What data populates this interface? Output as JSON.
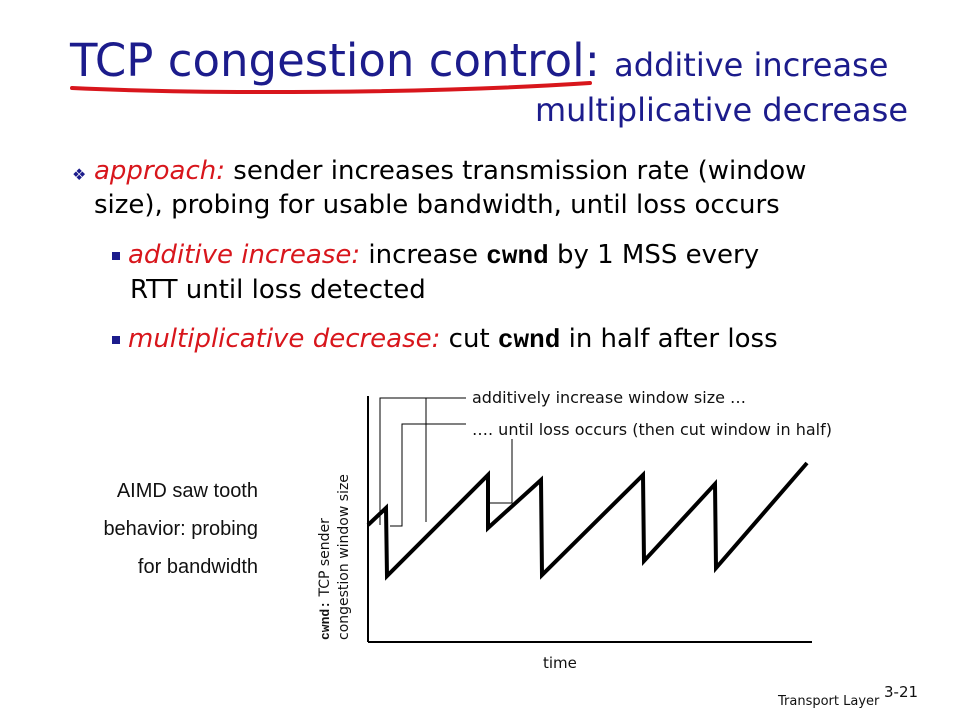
{
  "slide": {
    "title_main": "TCP congestion control:",
    "title_sub": "additive increase",
    "title_line2": "multiplicative decrease",
    "accent_color": "#d8161c",
    "title_color": "#1c1c8c"
  },
  "bullets": {
    "approach_term": "approach:",
    "approach_text_1": "sender increases transmission rate (window",
    "approach_text_2": "size), probing for usable bandwidth, until loss occurs",
    "ai_term": "additive increase:",
    "ai_text_a": "increase",
    "ai_code": "cwnd",
    "ai_text_b": "by 1 MSS every",
    "ai_text_2": "RTT until loss detected",
    "md_term": "multiplicative decrease:",
    "md_text_a": "cut",
    "md_code": "cwnd",
    "md_text_b": "in half after loss"
  },
  "side_note": {
    "line1": "AIMD saw tooth",
    "line2": "behavior: probing",
    "line3": "for bandwidth"
  },
  "diagram": {
    "anno_increase": "additively increase window size …",
    "anno_loss": "…. until loss occurs (then cut window in half)",
    "y_code": "cwnd:",
    "y_label_1": "TCP sender",
    "y_label_2": "congestion window size",
    "x_label": "time"
  },
  "footer": {
    "section": "Transport Layer",
    "page": "3-21"
  }
}
